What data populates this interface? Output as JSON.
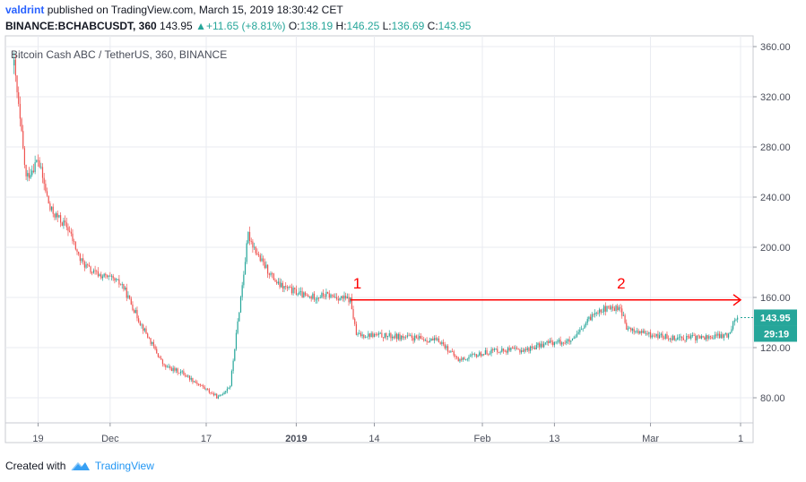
{
  "header": {
    "user": "valdrint",
    "published": "published on TradingView.com, March 15, 2019 18:30:42 CET",
    "symbol": "BINANCE:BCHABCUSDT, 360",
    "price": "143.95",
    "change": "+11.65 (+8.81%)",
    "o_label": "O:",
    "o": "138.19",
    "h_label": "H:",
    "h": "146.25",
    "l_label": "L:",
    "l": "136.69",
    "c_label": "C:",
    "c": "143.95"
  },
  "chart_title": "Bitcoin Cash ABC / TetherUS, 360, BINANCE",
  "price_tag": "143.95",
  "timer_tag": "29:19",
  "annotations": [
    "1",
    "2"
  ],
  "footer": {
    "created_with": "Created with",
    "brand": "TradingView"
  },
  "colors": {
    "up": "#26a69a",
    "down": "#ef5350",
    "annotation": "#ff0000",
    "grid": "#e9ebf1"
  },
  "chart_data": {
    "type": "candlestick",
    "title": "Bitcoin Cash ABC / TetherUS, 360, BINANCE",
    "interval": "360",
    "grid": true,
    "ylim": [
      56,
      364
    ],
    "y_ticks": [
      "80.00",
      "120.00",
      "160.00",
      "200.00",
      "240.00",
      "280.00",
      "320.00",
      "360.00"
    ],
    "x_ticks": [
      "19",
      "Dec",
      "17",
      "2019",
      "14",
      "Feb",
      "13",
      "Mar",
      "1"
    ],
    "price_path": [
      [
        "2018-11-15",
        345
      ],
      [
        "2018-11-16",
        300
      ],
      [
        "2018-11-17",
        255
      ],
      [
        "2018-11-19",
        270
      ],
      [
        "2018-11-21",
        230
      ],
      [
        "2018-11-24",
        215
      ],
      [
        "2018-11-26",
        190
      ],
      [
        "2018-11-28",
        180
      ],
      [
        "2018-12-01",
        175
      ],
      [
        "2018-12-03",
        170
      ],
      [
        "2018-12-06",
        140
      ],
      [
        "2018-12-10",
        105
      ],
      [
        "2018-12-13",
        100
      ],
      [
        "2018-12-16",
        90
      ],
      [
        "2018-12-19",
        80
      ],
      [
        "2018-12-21",
        90
      ],
      [
        "2018-12-24",
        210
      ],
      [
        "2018-12-26",
        190
      ],
      [
        "2018-12-29",
        170
      ],
      [
        "2019-01-03",
        160
      ],
      [
        "2019-01-06",
        162
      ],
      [
        "2019-01-10",
        158
      ],
      [
        "2019-01-11",
        130
      ],
      [
        "2019-01-14",
        130
      ],
      [
        "2019-01-20",
        128
      ],
      [
        "2019-01-25",
        125
      ],
      [
        "2019-01-28",
        110
      ],
      [
        "2019-02-03",
        118
      ],
      [
        "2019-02-08",
        118
      ],
      [
        "2019-02-12",
        124
      ],
      [
        "2019-02-16",
        125
      ],
      [
        "2019-02-20",
        150
      ],
      [
        "2019-02-24",
        152
      ],
      [
        "2019-02-25",
        135
      ],
      [
        "2019-03-01",
        130
      ],
      [
        "2019-03-05",
        128
      ],
      [
        "2019-03-10",
        128
      ],
      [
        "2019-03-14",
        130
      ],
      [
        "2019-03-15",
        143.95
      ]
    ],
    "horizontal_line": {
      "value": 158,
      "from": "2019-01-10",
      "to": "2019-03-16"
    },
    "last_price": 143.95
  }
}
